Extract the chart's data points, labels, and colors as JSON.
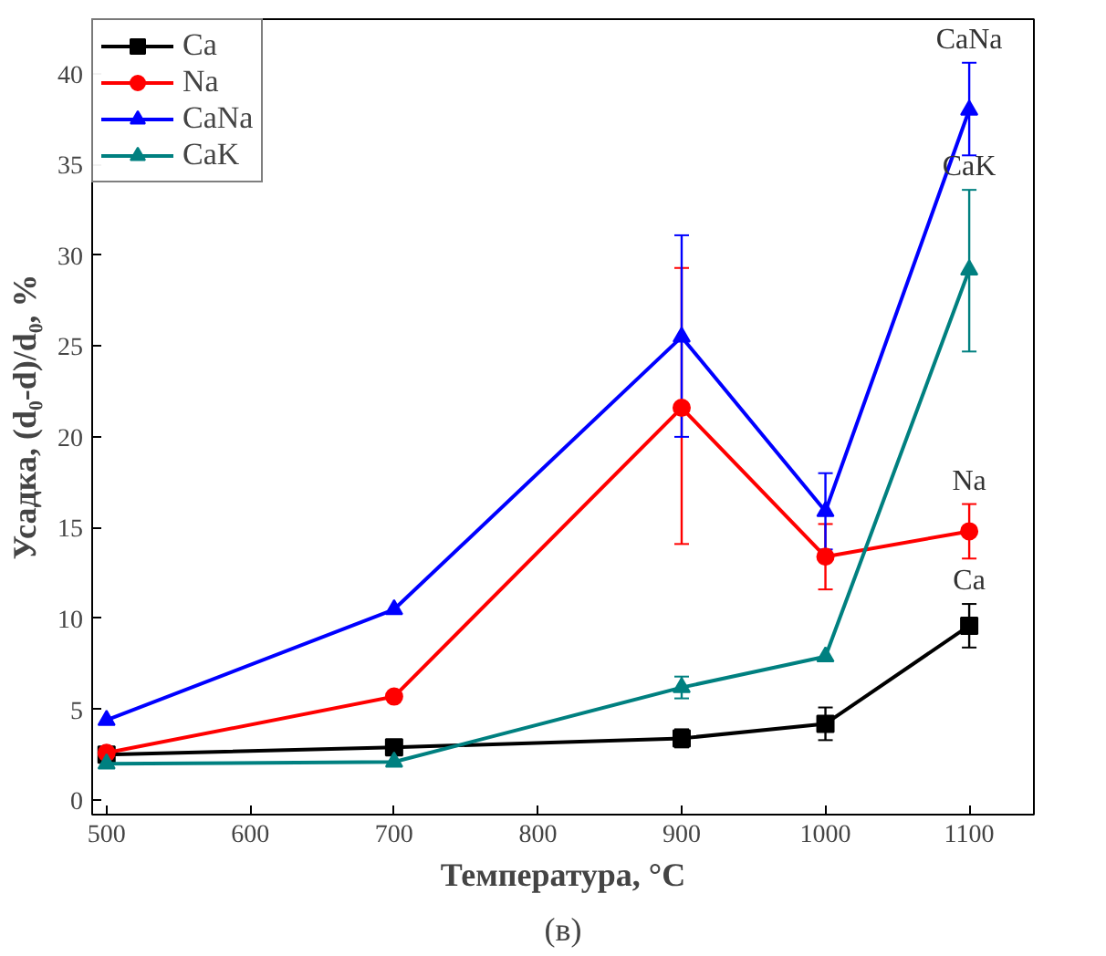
{
  "chart_data": {
    "type": "line",
    "xlabel": "Температура, °C",
    "ylabel": "Усадка, (d₀-d)/d₀, %",
    "x": [
      500,
      700,
      900,
      1000,
      1100
    ],
    "series": [
      {
        "name": "Ca",
        "color": "#000000",
        "marker": "square",
        "values": [
          2.5,
          2.9,
          3.4,
          4.2,
          9.6
        ],
        "errors": [
          null,
          null,
          0.5,
          0.9,
          1.2
        ]
      },
      {
        "name": "Na",
        "color": "#ff0000",
        "marker": "circle",
        "values": [
          2.6,
          5.7,
          21.6,
          13.4,
          14.8
        ],
        "errors": [
          null,
          null,
          [
            14.1,
            29.3
          ],
          1.8,
          1.5
        ]
      },
      {
        "name": "CaNa",
        "color": "#0000ff",
        "marker": "triangle",
        "values": [
          4.4,
          10.5,
          25.5,
          15.9,
          38.0
        ],
        "errors": [
          null,
          null,
          [
            20.0,
            31.1
          ],
          2.1,
          [
            35.5,
            40.6
          ]
        ]
      },
      {
        "name": "CaK",
        "color": "#008080",
        "marker": "triangle",
        "values": [
          2.0,
          2.1,
          6.2,
          7.9,
          29.2
        ],
        "errors": [
          null,
          null,
          0.6,
          null,
          [
            24.7,
            33.6
          ]
        ]
      }
    ],
    "annotations": [
      "Ca",
      "Na",
      "CaNa",
      "CaK",
      "(в)"
    ],
    "xlim": [
      490,
      1145
    ],
    "ylim": [
      -0.8,
      43
    ],
    "xticks": [
      500,
      600,
      700,
      800,
      900,
      1000,
      1100
    ],
    "yticks": [
      0,
      5,
      10,
      15,
      20,
      25,
      30,
      35,
      40
    ],
    "grid": false,
    "legend": "top left",
    "line_style": "solid"
  }
}
